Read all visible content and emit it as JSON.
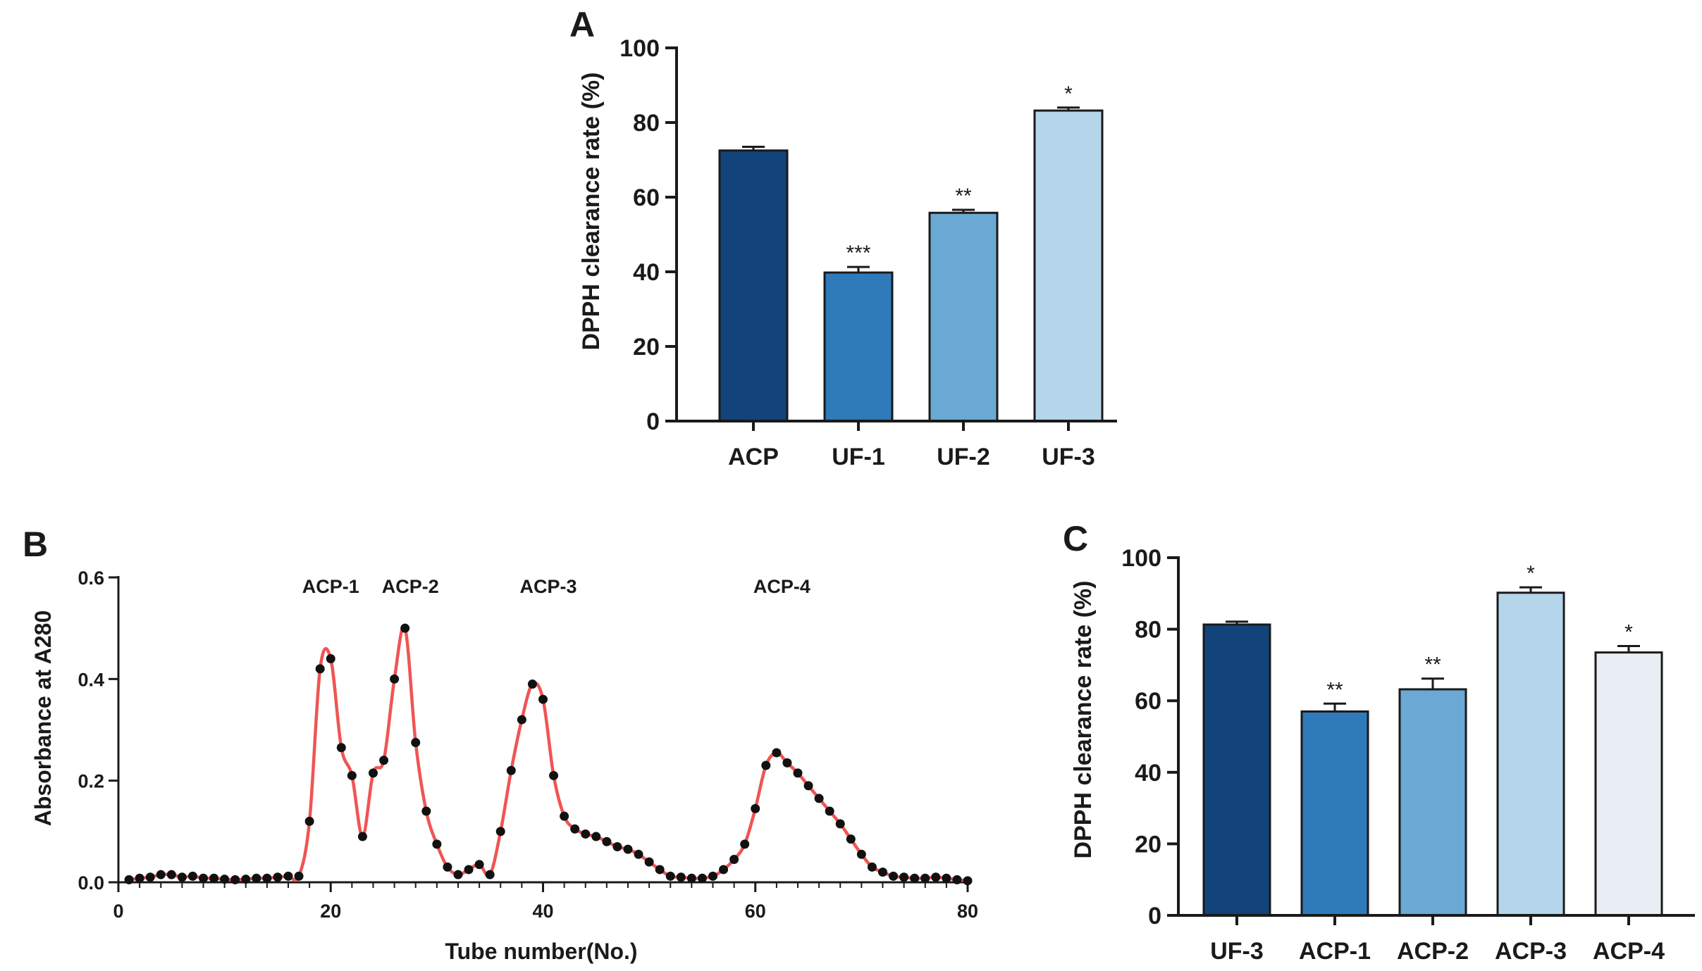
{
  "chart_data": [
    {
      "panel": "A",
      "type": "bar",
      "categories": [
        "ACP",
        "UF-1",
        "UF-2",
        "UF-3"
      ],
      "values": [
        72.5,
        39.8,
        55.8,
        83.2
      ],
      "errors": [
        1.0,
        1.5,
        0.8,
        0.8
      ],
      "significance": [
        "",
        "***",
        "**",
        "*"
      ],
      "colors": [
        "#12437a",
        "#2f7ab9",
        "#6aa9d3",
        "#b5d6ea"
      ],
      "title": "",
      "xlabel": "",
      "ylabel": "DPPH clearance rate (%)",
      "ylim": [
        0,
        100
      ],
      "yticks": [
        0,
        20,
        40,
        60,
        80,
        100
      ]
    },
    {
      "panel": "B",
      "type": "line",
      "xlabel": "Tube number(No.)",
      "ylabel": "Absorbance at A280",
      "xlim": [
        0,
        80
      ],
      "ylim": [
        0,
        0.6
      ],
      "xticks": [
        0,
        20,
        40,
        60,
        80
      ],
      "yticks": [
        "0.0",
        "0.2",
        "0.4",
        "0.6"
      ],
      "line_color": "#f05454",
      "marker_color": "#111111",
      "peak_labels": [
        {
          "text": "ACP-1",
          "x": 20
        },
        {
          "text": "ACP-2",
          "x": 27.5
        },
        {
          "text": "ACP-3",
          "x": 40.5
        },
        {
          "text": "ACP-4",
          "x": 62.5
        }
      ],
      "x": [
        1,
        2,
        3,
        4,
        5,
        6,
        7,
        8,
        9,
        10,
        11,
        12,
        13,
        14,
        15,
        16,
        17,
        18,
        19,
        20,
        21,
        22,
        23,
        24,
        25,
        26,
        27,
        28,
        29,
        30,
        31,
        32,
        33,
        34,
        35,
        36,
        37,
        38,
        39,
        40,
        41,
        42,
        43,
        44,
        45,
        46,
        47,
        48,
        49,
        50,
        51,
        52,
        53,
        54,
        55,
        56,
        57,
        58,
        59,
        60,
        61,
        62,
        63,
        64,
        65,
        66,
        67,
        68,
        69,
        70,
        71,
        72,
        73,
        74,
        75,
        76,
        77,
        78,
        79,
        80
      ],
      "y": [
        0.005,
        0.008,
        0.01,
        0.015,
        0.015,
        0.01,
        0.012,
        0.008,
        0.008,
        0.006,
        0.005,
        0.006,
        0.008,
        0.008,
        0.01,
        0.012,
        0.012,
        0.12,
        0.42,
        0.44,
        0.265,
        0.21,
        0.09,
        0.215,
        0.24,
        0.4,
        0.5,
        0.275,
        0.14,
        0.075,
        0.03,
        0.015,
        0.025,
        0.035,
        0.015,
        0.1,
        0.22,
        0.32,
        0.39,
        0.36,
        0.21,
        0.13,
        0.105,
        0.095,
        0.09,
        0.08,
        0.07,
        0.065,
        0.055,
        0.04,
        0.025,
        0.012,
        0.01,
        0.008,
        0.008,
        0.012,
        0.025,
        0.045,
        0.075,
        0.145,
        0.23,
        0.255,
        0.235,
        0.215,
        0.19,
        0.165,
        0.14,
        0.115,
        0.085,
        0.055,
        0.03,
        0.02,
        0.012,
        0.01,
        0.008,
        0.008,
        0.01,
        0.008,
        0.005,
        0.003
      ]
    },
    {
      "panel": "C",
      "type": "bar",
      "categories": [
        "UF-3",
        "ACP-1",
        "ACP-2",
        "ACP-3",
        "ACP-4"
      ],
      "values": [
        81.3,
        57.0,
        63.2,
        90.2,
        73.5
      ],
      "errors": [
        0.8,
        2.2,
        3.0,
        1.5,
        1.8
      ],
      "significance": [
        "",
        "**",
        "**",
        "*",
        "*"
      ],
      "colors": [
        "#12437a",
        "#2f7ab9",
        "#6aa9d3",
        "#b5d6ea",
        "#e8eef3"
      ],
      "title": "",
      "xlabel": "",
      "ylabel": "DPPH clearance rate (%)",
      "ylim": [
        0,
        100
      ],
      "yticks": [
        0,
        20,
        40,
        60,
        80,
        100
      ]
    }
  ]
}
